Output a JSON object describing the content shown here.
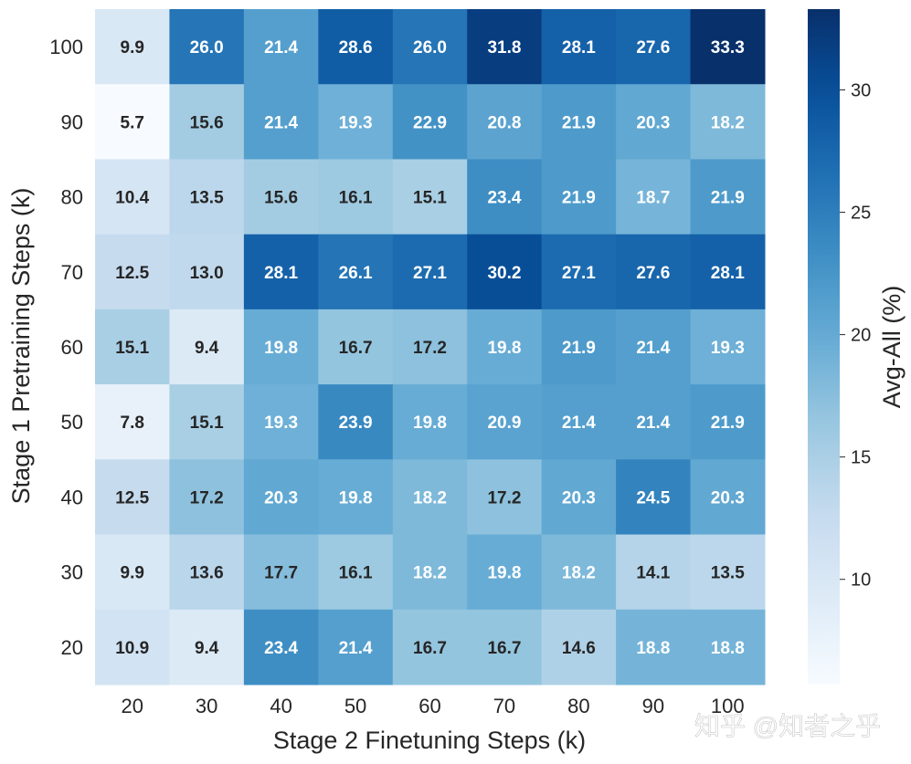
{
  "chart_data": {
    "type": "heatmap",
    "x_categories": [
      "20",
      "30",
      "40",
      "50",
      "60",
      "70",
      "80",
      "90",
      "100"
    ],
    "y_categories": [
      "100",
      "90",
      "80",
      "70",
      "60",
      "50",
      "40",
      "30",
      "20"
    ],
    "values": [
      [
        9.9,
        26.0,
        21.4,
        28.6,
        26.0,
        31.8,
        28.1,
        27.6,
        33.3
      ],
      [
        5.7,
        15.6,
        21.4,
        19.3,
        22.9,
        20.8,
        21.9,
        20.3,
        18.2
      ],
      [
        10.4,
        13.5,
        15.6,
        16.1,
        15.1,
        23.4,
        21.9,
        18.7,
        21.9
      ],
      [
        12.5,
        13.0,
        28.1,
        26.1,
        27.1,
        30.2,
        27.1,
        27.6,
        28.1
      ],
      [
        15.1,
        9.4,
        19.8,
        16.7,
        17.2,
        19.8,
        21.9,
        21.4,
        19.3
      ],
      [
        7.8,
        15.1,
        19.3,
        23.9,
        19.8,
        20.9,
        21.4,
        21.4,
        21.9
      ],
      [
        12.5,
        17.2,
        20.3,
        19.8,
        18.2,
        17.2,
        20.3,
        24.5,
        20.3
      ],
      [
        9.9,
        13.6,
        17.7,
        16.1,
        18.2,
        19.8,
        18.2,
        14.1,
        13.5
      ],
      [
        10.9,
        9.4,
        23.4,
        21.4,
        16.7,
        16.7,
        14.6,
        18.8,
        18.8
      ]
    ],
    "xlabel": "Stage 2 Finetuning Steps (k)",
    "ylabel": "Stage 1 Pretraining Steps (k)",
    "colorbar": {
      "label": "Avg-All (%)",
      "ticks": [
        10,
        15,
        20,
        25,
        30
      ],
      "range": [
        5.7,
        33.3
      ]
    },
    "colormap": "Blues",
    "colors": {
      "low": "#f7fbff",
      "high": "#08306b",
      "text_dark": "#262626",
      "text_light": "#ffffff"
    }
  },
  "watermark": "知乎 @知者之乎"
}
